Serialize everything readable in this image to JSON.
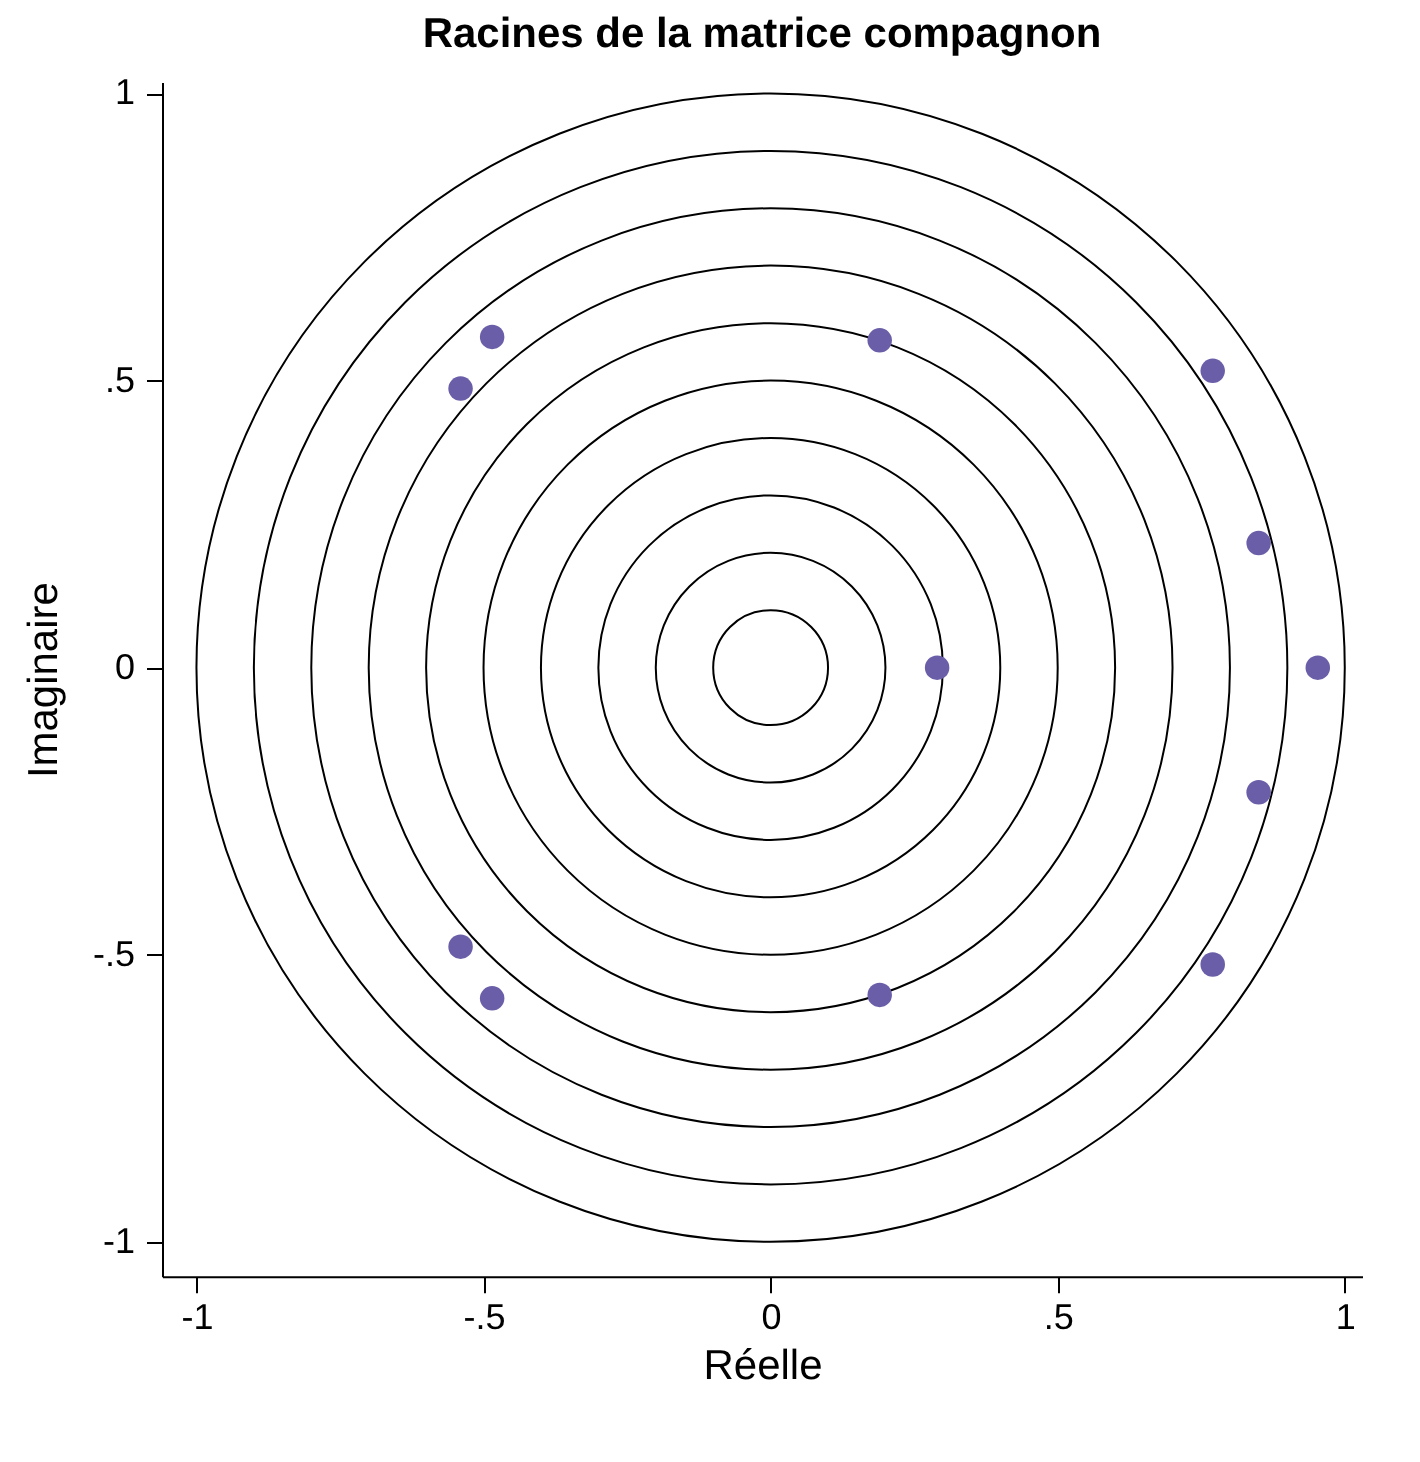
{
  "chart_data": {
    "type": "scatter",
    "title": "Racines de la matrice compagnon",
    "xlabel": "Réelle",
    "ylabel": "Imaginaire",
    "xlim": [
      -1.06,
      1.03
    ],
    "ylim": [
      -1.06,
      1.02
    ],
    "xticks": [
      {
        "value": -1,
        "label": "-1"
      },
      {
        "value": -0.5,
        "label": "-.5"
      },
      {
        "value": 0,
        "label": "0"
      },
      {
        "value": 0.5,
        "label": ".5"
      },
      {
        "value": 1,
        "label": "1"
      }
    ],
    "yticks": [
      {
        "value": -1,
        "label": "-1"
      },
      {
        "value": -0.5,
        "label": "-.5"
      },
      {
        "value": 0,
        "label": "0"
      },
      {
        "value": 0.5,
        "label": ".5"
      },
      {
        "value": 1,
        "label": "1"
      }
    ],
    "grid": false,
    "legend": false,
    "marker": "circle",
    "series": [
      {
        "color": "#6b5ea8",
        "x": [
          0.953,
          0.85,
          0.85,
          0.77,
          0.77,
          0.19,
          0.19,
          0.29,
          -0.485,
          -0.485,
          -0.54,
          -0.54
        ],
        "values": [
          0,
          0.217,
          -0.217,
          0.517,
          -0.517,
          0.57,
          -0.57,
          0,
          0.576,
          -0.576,
          0.486,
          -0.486
        ]
      }
    ]
  }
}
